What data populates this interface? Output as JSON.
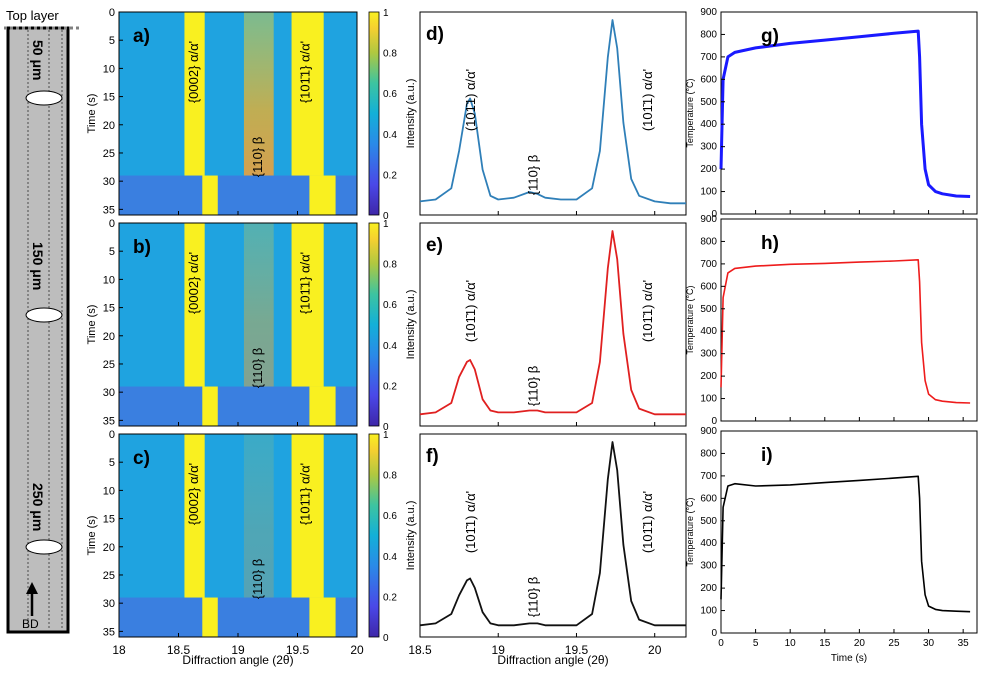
{
  "schematic": {
    "top_label": "Top layer",
    "bd_label": "BD",
    "depths": [
      "50 μm",
      "150 μm",
      "250 μm"
    ]
  },
  "colors": {
    "heat_low": "#3a4bd0",
    "heat_mid": "#1f9fd8",
    "heat_high": "#f9f020",
    "line_d": "#2f7fb8",
    "line_e": "#e02020",
    "line_f": "#111111",
    "temp_g": "#1a1aff",
    "temp_h": "#ee1c1c",
    "temp_i": "#000000"
  },
  "heatmaps": {
    "colorbar_ticks": [
      "0",
      "0.2",
      "0.4",
      "0.6",
      "0.8",
      "1"
    ],
    "xlabel": "Diffraction angle (2θ)",
    "ylabel": "Time (s)",
    "xticks": [
      "18",
      "18.5",
      "19",
      "19.5",
      "20"
    ],
    "yticks": [
      "0",
      "5",
      "10",
      "15",
      "20",
      "25",
      "30",
      "35"
    ],
    "panels": [
      {
        "tag": "a)",
        "peaks": [
          "{0002} α/α'",
          "{110} β",
          "{101̄1} α/α'"
        ]
      },
      {
        "tag": "b)",
        "peaks": [
          "{0002} α/α'",
          "{110} β",
          "{101̄1} α/α'"
        ]
      },
      {
        "tag": "c)",
        "peaks": [
          "{0002} α/α'",
          "{110} β",
          "{101̄1} α/α'"
        ]
      }
    ]
  },
  "chart_data": [
    {
      "type": "line",
      "panel": "d)",
      "ylabel": "Intensity (a.u.)",
      "xlabel": "",
      "xlim": [
        18.5,
        20.2
      ],
      "x": [
        18.5,
        18.6,
        18.7,
        18.75,
        18.8,
        18.82,
        18.85,
        18.9,
        18.95,
        19.0,
        19.1,
        19.2,
        19.25,
        19.3,
        19.4,
        19.5,
        19.6,
        19.65,
        19.7,
        19.73,
        19.76,
        19.8,
        19.85,
        19.9,
        20.0,
        20.1,
        20.2
      ],
      "values": [
        0.03,
        0.04,
        0.1,
        0.3,
        0.55,
        0.58,
        0.5,
        0.2,
        0.06,
        0.04,
        0.05,
        0.08,
        0.07,
        0.05,
        0.04,
        0.04,
        0.1,
        0.3,
        0.8,
        1.0,
        0.85,
        0.45,
        0.15,
        0.06,
        0.03,
        0.02,
        0.02
      ],
      "annotations": [
        "(101̄1) α/α'",
        "{110} β",
        "(101̄1) α/α'"
      ]
    },
    {
      "type": "line",
      "panel": "e)",
      "ylabel": "Intensity (a.u.)",
      "xlabel": "",
      "xlim": [
        18.5,
        20.2
      ],
      "x": [
        18.5,
        18.6,
        18.7,
        18.75,
        18.8,
        18.82,
        18.85,
        18.9,
        18.95,
        19.0,
        19.1,
        19.2,
        19.25,
        19.3,
        19.4,
        19.5,
        19.6,
        19.65,
        19.7,
        19.73,
        19.76,
        19.8,
        19.85,
        19.9,
        20.0,
        20.1,
        20.2
      ],
      "values": [
        0.02,
        0.03,
        0.08,
        0.22,
        0.3,
        0.31,
        0.26,
        0.1,
        0.04,
        0.03,
        0.03,
        0.04,
        0.04,
        0.03,
        0.03,
        0.03,
        0.08,
        0.3,
        0.8,
        1.0,
        0.85,
        0.45,
        0.15,
        0.05,
        0.02,
        0.02,
        0.02
      ],
      "annotations": [
        "(101̄1) α/α'",
        "{110} β",
        "(101̄1) α/α'"
      ]
    },
    {
      "type": "line",
      "panel": "f)",
      "ylabel": "Intensity (a.u.)",
      "xlabel": "Diffraction angle (2θ)",
      "xlim": [
        18.5,
        20.2
      ],
      "xticks": [
        "18.5",
        "19",
        "19.5",
        "20"
      ],
      "x": [
        18.5,
        18.6,
        18.7,
        18.75,
        18.8,
        18.82,
        18.85,
        18.9,
        18.95,
        19.0,
        19.1,
        19.2,
        19.25,
        19.3,
        19.4,
        19.5,
        19.6,
        19.65,
        19.7,
        19.73,
        19.76,
        19.8,
        19.85,
        19.9,
        20.0,
        20.1,
        20.2
      ],
      "values": [
        0.02,
        0.03,
        0.08,
        0.18,
        0.26,
        0.27,
        0.22,
        0.09,
        0.03,
        0.02,
        0.02,
        0.03,
        0.03,
        0.02,
        0.02,
        0.02,
        0.08,
        0.3,
        0.8,
        1.0,
        0.85,
        0.45,
        0.15,
        0.05,
        0.02,
        0.02,
        0.02
      ],
      "annotations": [
        "(101̄1) α/α'",
        "{110} β",
        "(101̄1) α/α'"
      ]
    },
    {
      "type": "line",
      "panel": "g)",
      "ylabel": "Temperature (°C)",
      "xlabel": "",
      "xlim": [
        0,
        37
      ],
      "ylim": [
        0,
        900
      ],
      "yticks": [
        "0",
        "100",
        "200",
        "300",
        "400",
        "500",
        "600",
        "700",
        "800",
        "900"
      ],
      "x": [
        0,
        0.3,
        1,
        2,
        5,
        10,
        15,
        20,
        25,
        28.5,
        28.7,
        29,
        29.5,
        30,
        31,
        32,
        34,
        36
      ],
      "values": [
        200,
        600,
        700,
        720,
        740,
        760,
        775,
        790,
        805,
        815,
        700,
        400,
        200,
        130,
        100,
        90,
        80,
        78
      ]
    },
    {
      "type": "line",
      "panel": "h)",
      "ylabel": "Temperature (°C)",
      "xlabel": "",
      "xlim": [
        0,
        37
      ],
      "ylim": [
        0,
        900
      ],
      "yticks": [
        "0",
        "100",
        "200",
        "300",
        "400",
        "500",
        "600",
        "700",
        "800",
        "900"
      ],
      "x": [
        0,
        0.3,
        1,
        2,
        5,
        10,
        15,
        20,
        25,
        28.5,
        28.7,
        29,
        29.5,
        30,
        31,
        32,
        34,
        36
      ],
      "values": [
        150,
        550,
        660,
        680,
        690,
        698,
        702,
        708,
        713,
        718,
        620,
        350,
        180,
        120,
        95,
        88,
        82,
        80
      ]
    },
    {
      "type": "line",
      "panel": "i)",
      "ylabel": "Temperature (°C)",
      "xlabel": "Time (s)",
      "xlim": [
        0,
        37
      ],
      "ylim": [
        0,
        900
      ],
      "yticks": [
        "0",
        "100",
        "200",
        "300",
        "400",
        "500",
        "600",
        "700",
        "800",
        "900"
      ],
      "xticks": [
        "0",
        "5",
        "10",
        "15",
        "20",
        "25",
        "30",
        "35"
      ],
      "x": [
        0,
        0.3,
        1,
        2,
        5,
        10,
        15,
        20,
        25,
        28.5,
        28.7,
        29,
        29.5,
        30,
        31,
        32,
        34,
        36
      ],
      "values": [
        150,
        560,
        655,
        665,
        655,
        660,
        670,
        680,
        690,
        698,
        600,
        320,
        170,
        120,
        105,
        100,
        97,
        95
      ]
    }
  ]
}
